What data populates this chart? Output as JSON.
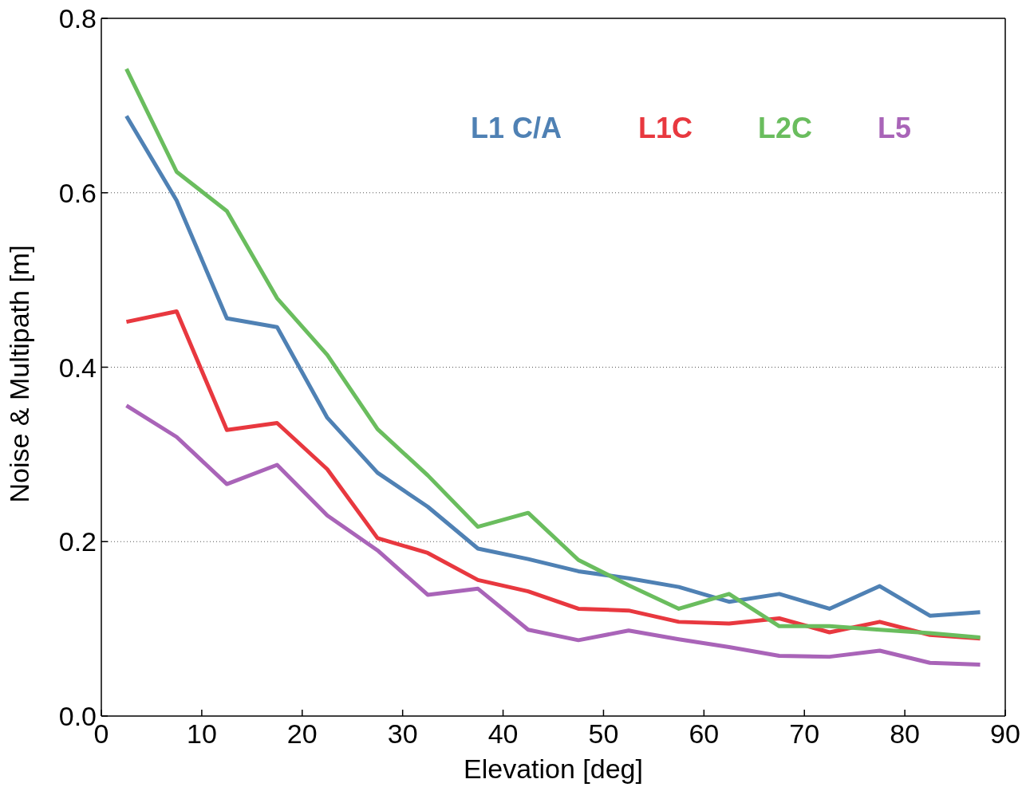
{
  "chart_data": {
    "type": "line",
    "xlabel": "Elevation [deg]",
    "ylabel": "Noise & Multipath [m]",
    "x": [
      2.5,
      7.5,
      12.5,
      17.5,
      22.5,
      27.5,
      32.5,
      37.5,
      42.5,
      47.5,
      52.5,
      57.5,
      62.5,
      67.5,
      72.5,
      77.5,
      82.5,
      87.5
    ],
    "series": [
      {
        "name": "L1 C/A",
        "color": "#4f81b4",
        "values": [
          0.688,
          0.591,
          0.456,
          0.446,
          0.342,
          0.279,
          0.24,
          0.192,
          0.18,
          0.166,
          0.158,
          0.148,
          0.131,
          0.14,
          0.123,
          0.149,
          0.115,
          0.119
        ]
      },
      {
        "name": "L1C",
        "color": "#e8383f",
        "values": [
          0.452,
          0.464,
          0.328,
          0.336,
          0.283,
          0.204,
          0.187,
          0.156,
          0.143,
          0.123,
          0.121,
          0.108,
          0.106,
          0.112,
          0.096,
          0.108,
          0.093,
          0.089
        ]
      },
      {
        "name": "L2C",
        "color": "#6abd5e",
        "values": [
          0.742,
          0.624,
          0.579,
          0.479,
          0.414,
          0.329,
          0.276,
          0.217,
          0.233,
          0.179,
          0.15,
          0.123,
          0.14,
          0.103,
          0.103,
          0.099,
          0.095,
          0.09
        ]
      },
      {
        "name": "L5",
        "color": "#a964b8",
        "values": [
          0.356,
          0.32,
          0.266,
          0.288,
          0.23,
          0.19,
          0.139,
          0.146,
          0.099,
          0.087,
          0.098,
          0.088,
          0.079,
          0.069,
          0.068,
          0.075,
          0.061,
          0.059
        ]
      }
    ],
    "xlim": [
      0,
      90
    ],
    "xticks": [
      0,
      10,
      20,
      30,
      40,
      50,
      60,
      70,
      80,
      90
    ],
    "ylim": [
      0,
      0.8
    ],
    "yticks": [
      {
        "value": 0,
        "label": "0.0"
      },
      {
        "value": 0.2,
        "label": "0.2"
      },
      {
        "value": 0.4,
        "label": "0.4"
      },
      {
        "value": 0.6,
        "label": "0.6"
      },
      {
        "value": 0.8,
        "label": "0.8"
      }
    ],
    "grid": "y",
    "legend": "top right",
    "line_style": "solid",
    "marker": "none"
  }
}
